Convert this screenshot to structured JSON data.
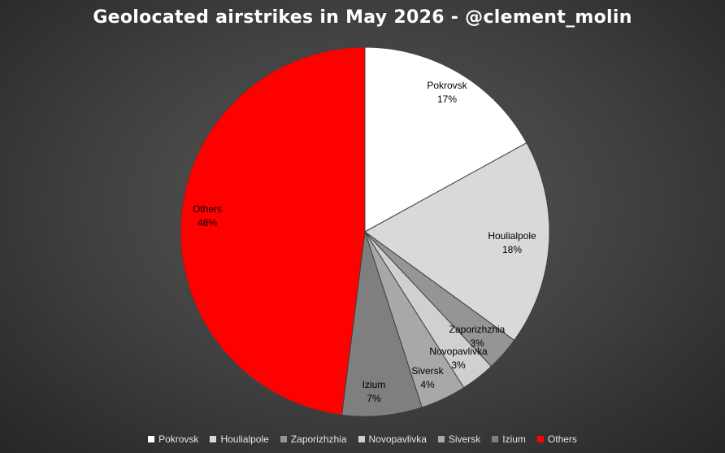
{
  "chart_data": {
    "type": "pie",
    "title": "Geolocated airstrikes in May 2026 - @clement_molin",
    "slices": [
      {
        "name": "Pokrovsk",
        "value": 17,
        "label": "17%",
        "color": "#ffffff"
      },
      {
        "name": "Houlialpole",
        "value": 18,
        "label": "18%",
        "color": "#d9d9d9"
      },
      {
        "name": "Zaporizhzhia",
        "value": 3,
        "label": "3%",
        "color": "#959595"
      },
      {
        "name": "Novopavlivka",
        "value": 3,
        "label": "3%",
        "color": "#d0d0d0"
      },
      {
        "name": "Siversk",
        "value": 4,
        "label": "4%",
        "color": "#a8a8a8"
      },
      {
        "name": "Izium",
        "value": 7,
        "label": "7%",
        "color": "#7f7f7f"
      },
      {
        "name": "Others",
        "value": 48,
        "label": "48%",
        "color": "#ff0000"
      }
    ],
    "legend_position": "bottom"
  }
}
